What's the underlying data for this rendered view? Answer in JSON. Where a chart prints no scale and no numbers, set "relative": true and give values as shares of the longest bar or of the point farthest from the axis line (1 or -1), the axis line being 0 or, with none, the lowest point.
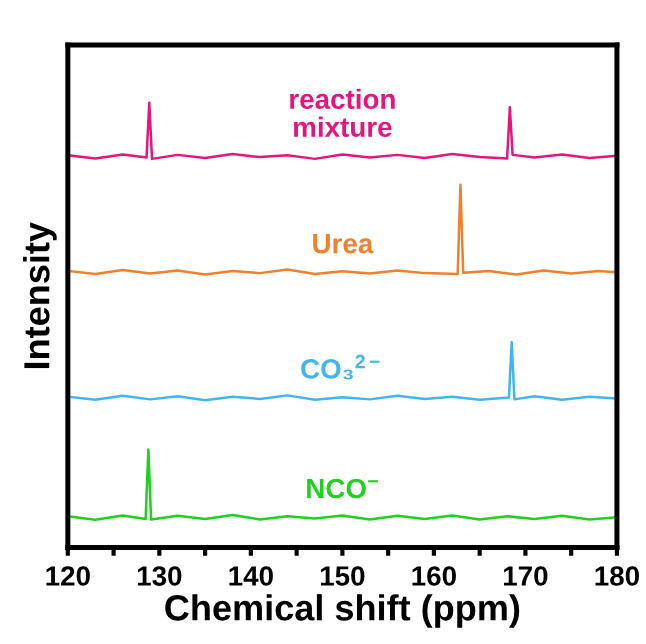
{
  "chart_data": {
    "type": "line",
    "relative": true,
    "xlabel": "Chemical shift (ppm)",
    "ylabel": "Intensity",
    "xlim": [
      120,
      180
    ],
    "xticks": [
      120,
      {
        "value": 125,
        "label": null
      },
      130,
      {
        "value": 135,
        "label": null
      },
      140,
      {
        "value": 145,
        "label": null
      },
      150,
      {
        "value": 155,
        "label": null
      },
      160,
      {
        "value": 165,
        "label": null
      },
      170,
      {
        "value": 175,
        "label": null
      },
      180
    ],
    "tick_labels": "x",
    "grid": false,
    "legend": false,
    "marker": "none",
    "line_style": "solid",
    "series": [
      {
        "name": "reaction\nmixture",
        "color": "#e4157f",
        "x": [
          120,
          123,
          126,
          128.6,
          128.9,
          129.2,
          132,
          135,
          138,
          141,
          144,
          147,
          150,
          153,
          156,
          159,
          162,
          165,
          168.0,
          168.3,
          168.6,
          171,
          174,
          177,
          180
        ],
        "values": [
          0.882,
          0.875,
          0.884,
          0.877,
          1.0,
          0.874,
          0.883,
          0.876,
          0.885,
          0.878,
          0.882,
          0.874,
          0.884,
          0.877,
          0.883,
          0.876,
          0.885,
          0.878,
          0.875,
          0.99,
          0.883,
          0.877,
          0.884,
          0.876,
          0.881
        ]
      },
      {
        "name": "Urea",
        "color": "#f07f2e",
        "x": [
          120,
          123,
          126,
          129,
          132,
          135,
          138,
          141,
          144,
          147,
          150,
          153,
          156,
          159,
          162.6,
          162.9,
          163.2,
          166,
          169,
          172,
          175,
          178,
          180
        ],
        "values": [
          0.622,
          0.615,
          0.624,
          0.616,
          0.623,
          0.614,
          0.622,
          0.617,
          0.625,
          0.615,
          0.621,
          0.616,
          0.623,
          0.617,
          0.615,
          0.816,
          0.618,
          0.622,
          0.614,
          0.623,
          0.616,
          0.622,
          0.619
        ]
      },
      {
        "name": "CO₃$^{2−}$",
        "color": "#3fb6f0",
        "x": [
          120,
          123,
          126,
          129,
          132,
          135,
          138,
          141,
          144,
          147,
          150,
          153,
          156,
          159,
          162,
          165,
          168.2,
          168.5,
          168.8,
          171,
          174,
          177,
          180
        ],
        "values": [
          0.339,
          0.332,
          0.341,
          0.333,
          0.34,
          0.331,
          0.339,
          0.334,
          0.342,
          0.332,
          0.338,
          0.333,
          0.341,
          0.334,
          0.339,
          0.332,
          0.337,
          0.462,
          0.333,
          0.34,
          0.332,
          0.339,
          0.335
        ]
      },
      {
        "name": "NCO$^{−}$",
        "color": "#1dd11d",
        "x": [
          120,
          123,
          126,
          128.5,
          128.8,
          129.1,
          132,
          135,
          138,
          141,
          144,
          147,
          150,
          153,
          156,
          159,
          162,
          165,
          168,
          171,
          174,
          177,
          180
        ],
        "values": [
          0.07,
          0.062,
          0.072,
          0.064,
          0.22,
          0.063,
          0.071,
          0.064,
          0.073,
          0.063,
          0.07,
          0.065,
          0.072,
          0.063,
          0.071,
          0.064,
          0.072,
          0.063,
          0.07,
          0.064,
          0.071,
          0.063,
          0.068
        ]
      }
    ]
  }
}
